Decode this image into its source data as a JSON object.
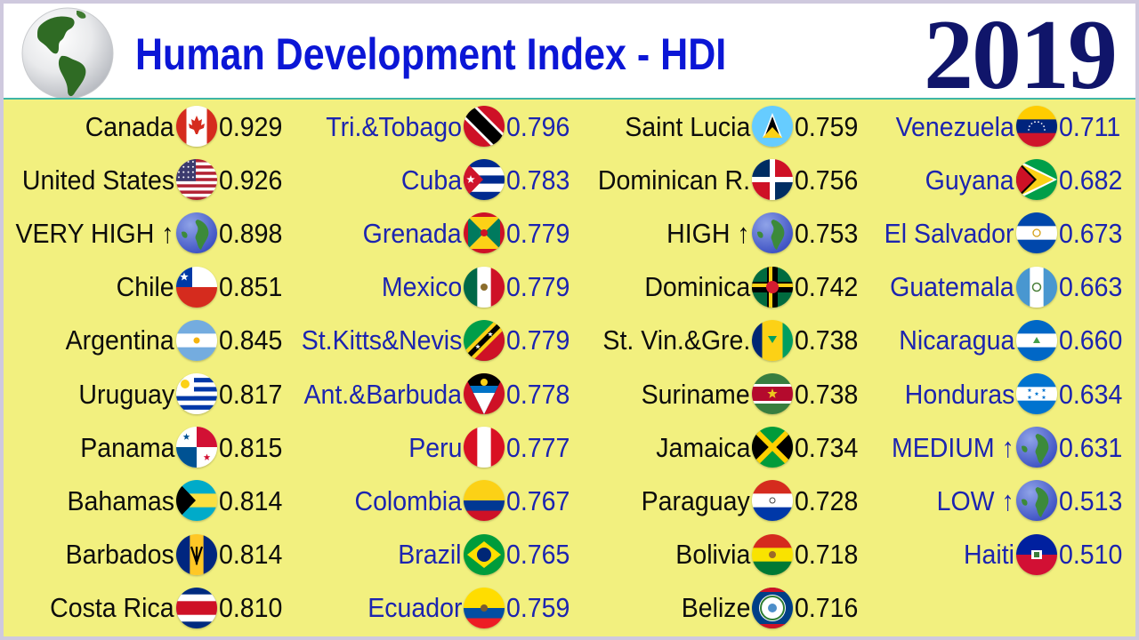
{
  "header": {
    "title": "Human Development Index - HDI",
    "year": "2019"
  },
  "colors": {
    "panel_bg": "#f2f07f",
    "title_blue": "#0b16d6",
    "year_navy": "#10156a",
    "dark_text": "#0c0c0c",
    "blue_text": "#1c24b0"
  },
  "columns": [
    {
      "text_style": "dark",
      "entries": [
        {
          "name": "Canada",
          "value": "0.929",
          "icon": "canada-flag-icon"
        },
        {
          "name": "United States",
          "value": "0.926",
          "icon": "united-states-flag-icon"
        },
        {
          "name": "VERY HIGH ↑",
          "value": "0.898",
          "icon": "earth-globe-icon"
        },
        {
          "name": "Chile",
          "value": "0.851",
          "icon": "chile-flag-icon"
        },
        {
          "name": "Argentina",
          "value": "0.845",
          "icon": "argentina-flag-icon"
        },
        {
          "name": "Uruguay",
          "value": "0.817",
          "icon": "uruguay-flag-icon"
        },
        {
          "name": "Panama",
          "value": "0.815",
          "icon": "panama-flag-icon"
        },
        {
          "name": "Bahamas",
          "value": "0.814",
          "icon": "bahamas-flag-icon"
        },
        {
          "name": "Barbados",
          "value": "0.814",
          "icon": "barbados-flag-icon"
        },
        {
          "name": "Costa Rica",
          "value": "0.810",
          "icon": "costa-rica-flag-icon"
        }
      ]
    },
    {
      "text_style": "blue",
      "entries": [
        {
          "name": "Tri.&Tobago",
          "value": "0.796",
          "icon": "trinidad-tobago-flag-icon"
        },
        {
          "name": "Cuba",
          "value": "0.783",
          "icon": "cuba-flag-icon"
        },
        {
          "name": "Grenada",
          "value": "0.779",
          "icon": "grenada-flag-icon"
        },
        {
          "name": "Mexico",
          "value": "0.779",
          "icon": "mexico-flag-icon"
        },
        {
          "name": "St.Kitts&Nevis",
          "value": "0.779",
          "icon": "st-kitts-nevis-flag-icon"
        },
        {
          "name": "Ant.&Barbuda",
          "value": "0.778",
          "icon": "antigua-barbuda-flag-icon"
        },
        {
          "name": "Peru",
          "value": "0.777",
          "icon": "peru-flag-icon"
        },
        {
          "name": "Colombia",
          "value": "0.767",
          "icon": "colombia-flag-icon"
        },
        {
          "name": "Brazil",
          "value": "0.765",
          "icon": "brazil-flag-icon"
        },
        {
          "name": "Ecuador",
          "value": "0.759",
          "icon": "ecuador-flag-icon"
        }
      ]
    },
    {
      "text_style": "dark",
      "entries": [
        {
          "name": "Saint Lucia",
          "value": "0.759",
          "icon": "saint-lucia-flag-icon"
        },
        {
          "name": "Dominican R.",
          "value": "0.756",
          "icon": "dominican-republic-flag-icon"
        },
        {
          "name": "HIGH ↑",
          "value": "0.753",
          "icon": "earth-globe-icon"
        },
        {
          "name": "Dominica",
          "value": "0.742",
          "icon": "dominica-flag-icon"
        },
        {
          "name": "St. Vin.&Gre.",
          "value": "0.738",
          "icon": "st-vincent-grenadines-flag-icon"
        },
        {
          "name": "Suriname",
          "value": "0.738",
          "icon": "suriname-flag-icon"
        },
        {
          "name": "Jamaica",
          "value": "0.734",
          "icon": "jamaica-flag-icon"
        },
        {
          "name": "Paraguay",
          "value": "0.728",
          "icon": "paraguay-flag-icon"
        },
        {
          "name": "Bolivia",
          "value": "0.718",
          "icon": "bolivia-flag-icon"
        },
        {
          "name": "Belize",
          "value": "0.716",
          "icon": "belize-flag-icon"
        }
      ]
    },
    {
      "text_style": "blue",
      "entries": [
        {
          "name": "Venezuela",
          "value": "0.711",
          "icon": "venezuela-flag-icon"
        },
        {
          "name": "Guyana",
          "value": "0.682",
          "icon": "guyana-flag-icon"
        },
        {
          "name": "El Salvador",
          "value": "0.673",
          "icon": "el-salvador-flag-icon"
        },
        {
          "name": "Guatemala",
          "value": "0.663",
          "icon": "guatemala-flag-icon"
        },
        {
          "name": "Nicaragua",
          "value": "0.660",
          "icon": "nicaragua-flag-icon"
        },
        {
          "name": "Honduras",
          "value": "0.634",
          "icon": "honduras-flag-icon"
        },
        {
          "name": "MEDIUM ↑",
          "value": "0.631",
          "icon": "earth-globe-icon"
        },
        {
          "name": "LOW ↑",
          "value": "0.513",
          "icon": "earth-globe-icon"
        },
        {
          "name": "Haiti",
          "value": "0.510",
          "icon": "haiti-flag-icon"
        }
      ]
    }
  ]
}
